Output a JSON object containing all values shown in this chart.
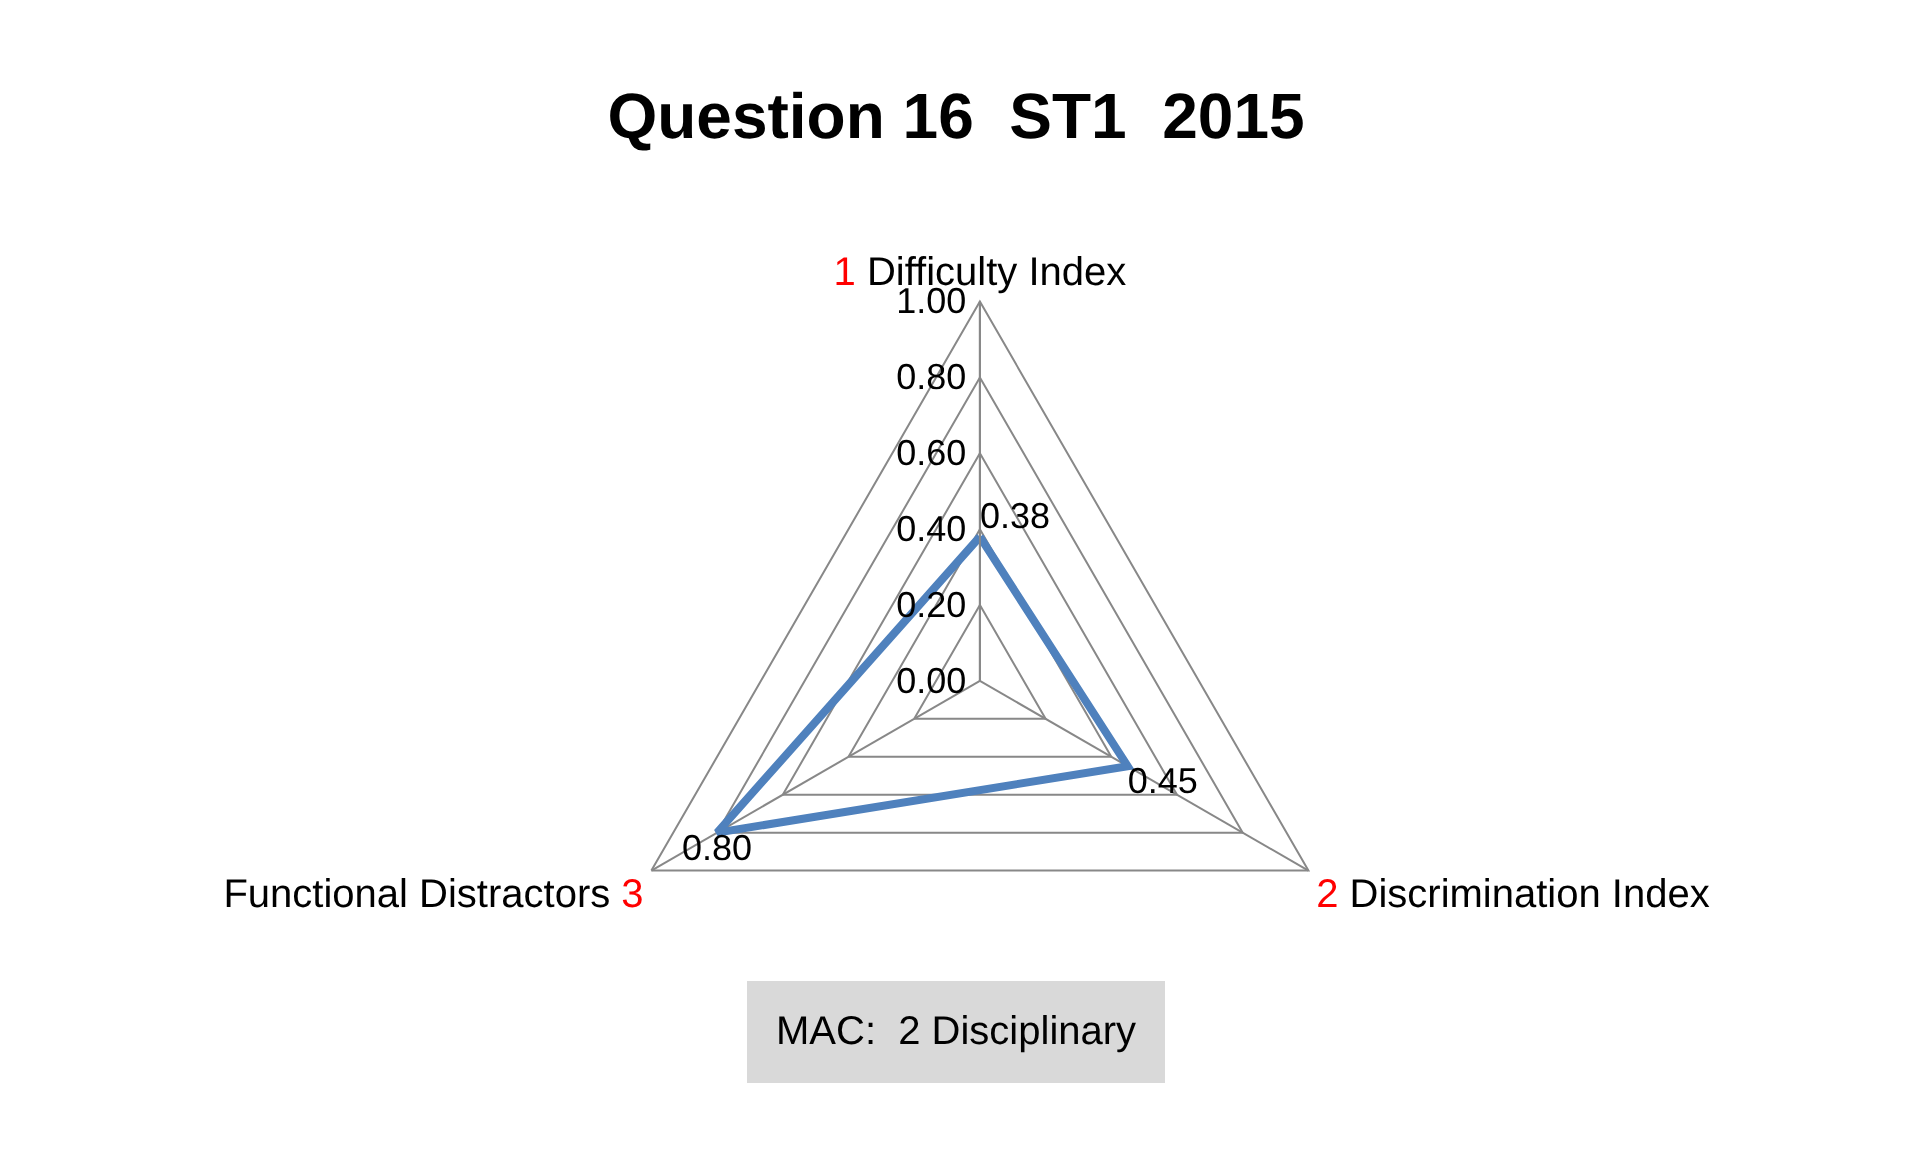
{
  "chart_data": {
    "type": "radar",
    "title": "Question 16  ST1  2015",
    "categories": [
      "1 Difficulty Index",
      "2 Discrimination Index",
      "Functional Distractors 3"
    ],
    "series": [
      {
        "color": "#4f81bd",
        "values": [
          0.38,
          0.45,
          0.8
        ],
        "value_labels": [
          "0.38",
          "0.45",
          "0.80"
        ]
      }
    ],
    "ylim": [
      0,
      1
    ],
    "yticks": [
      {
        "value": 0,
        "label": "0.00"
      },
      {
        "value": 0.2,
        "label": "0.20"
      },
      {
        "value": 0.4,
        "label": "0.40"
      },
      {
        "value": 0.6,
        "label": "0.60"
      },
      {
        "value": 0.8,
        "label": "0.80"
      },
      {
        "value": 1,
        "label": "1.00"
      }
    ],
    "grid": true,
    "marker": "none",
    "line_style": "solid",
    "annotations": [
      "MAC:  2 Disciplinary"
    ]
  }
}
